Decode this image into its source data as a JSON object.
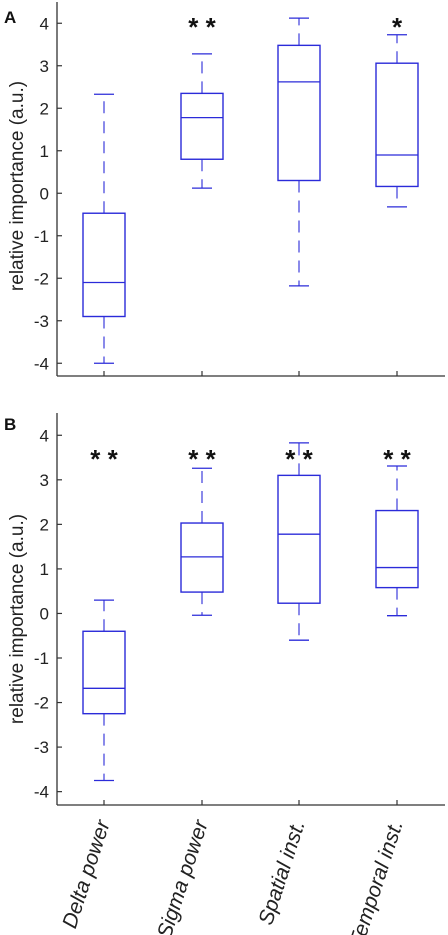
{
  "chart_data": [
    {
      "type": "box",
      "panel": "A",
      "ylabel": "relative importance (a.u.)",
      "ylim": [
        -4.3,
        4.5
      ],
      "yticks": [
        "-4",
        "-3",
        "-2",
        "-1",
        "0",
        "1",
        "2",
        "3",
        "4"
      ],
      "categories": [
        "Delta power",
        "Sigma power",
        "Spatial inst.",
        "Temporal inst."
      ],
      "boxes": [
        {
          "min": -4.0,
          "q1": -2.9,
          "median": -2.1,
          "q3": -0.47,
          "max": 2.33,
          "significance": ""
        },
        {
          "min": 0.12,
          "q1": 0.8,
          "median": 1.78,
          "q3": 2.35,
          "max": 3.28,
          "significance": "* *"
        },
        {
          "min": -2.18,
          "q1": 0.3,
          "median": 2.62,
          "q3": 3.48,
          "max": 4.12,
          "significance": ""
        },
        {
          "min": -0.32,
          "q1": 0.16,
          "median": 0.9,
          "q3": 3.06,
          "max": 3.73,
          "significance": "*"
        }
      ]
    },
    {
      "type": "box",
      "panel": "B",
      "ylabel": "relative importance (a.u.)",
      "ylim": [
        -4.3,
        4.5
      ],
      "yticks": [
        "-4",
        "-3",
        "-2",
        "-1",
        "0",
        "1",
        "2",
        "3",
        "4"
      ],
      "categories": [
        "Delta power",
        "Sigma power",
        "Spatial inst.",
        "Temporal inst."
      ],
      "boxes": [
        {
          "min": -3.75,
          "q1": -2.25,
          "median": -1.68,
          "q3": -0.4,
          "max": 0.3,
          "significance": "* *"
        },
        {
          "min": -0.04,
          "q1": 0.48,
          "median": 1.27,
          "q3": 2.03,
          "max": 3.26,
          "significance": "* *"
        },
        {
          "min": -0.6,
          "q1": 0.23,
          "median": 1.78,
          "q3": 3.1,
          "max": 3.83,
          "significance": "* *"
        },
        {
          "min": -0.05,
          "q1": 0.58,
          "median": 1.03,
          "q3": 2.31,
          "max": 3.31,
          "significance": "* *"
        }
      ]
    }
  ],
  "colors": {
    "box": "#2b2bd9",
    "axis": "#333333"
  }
}
